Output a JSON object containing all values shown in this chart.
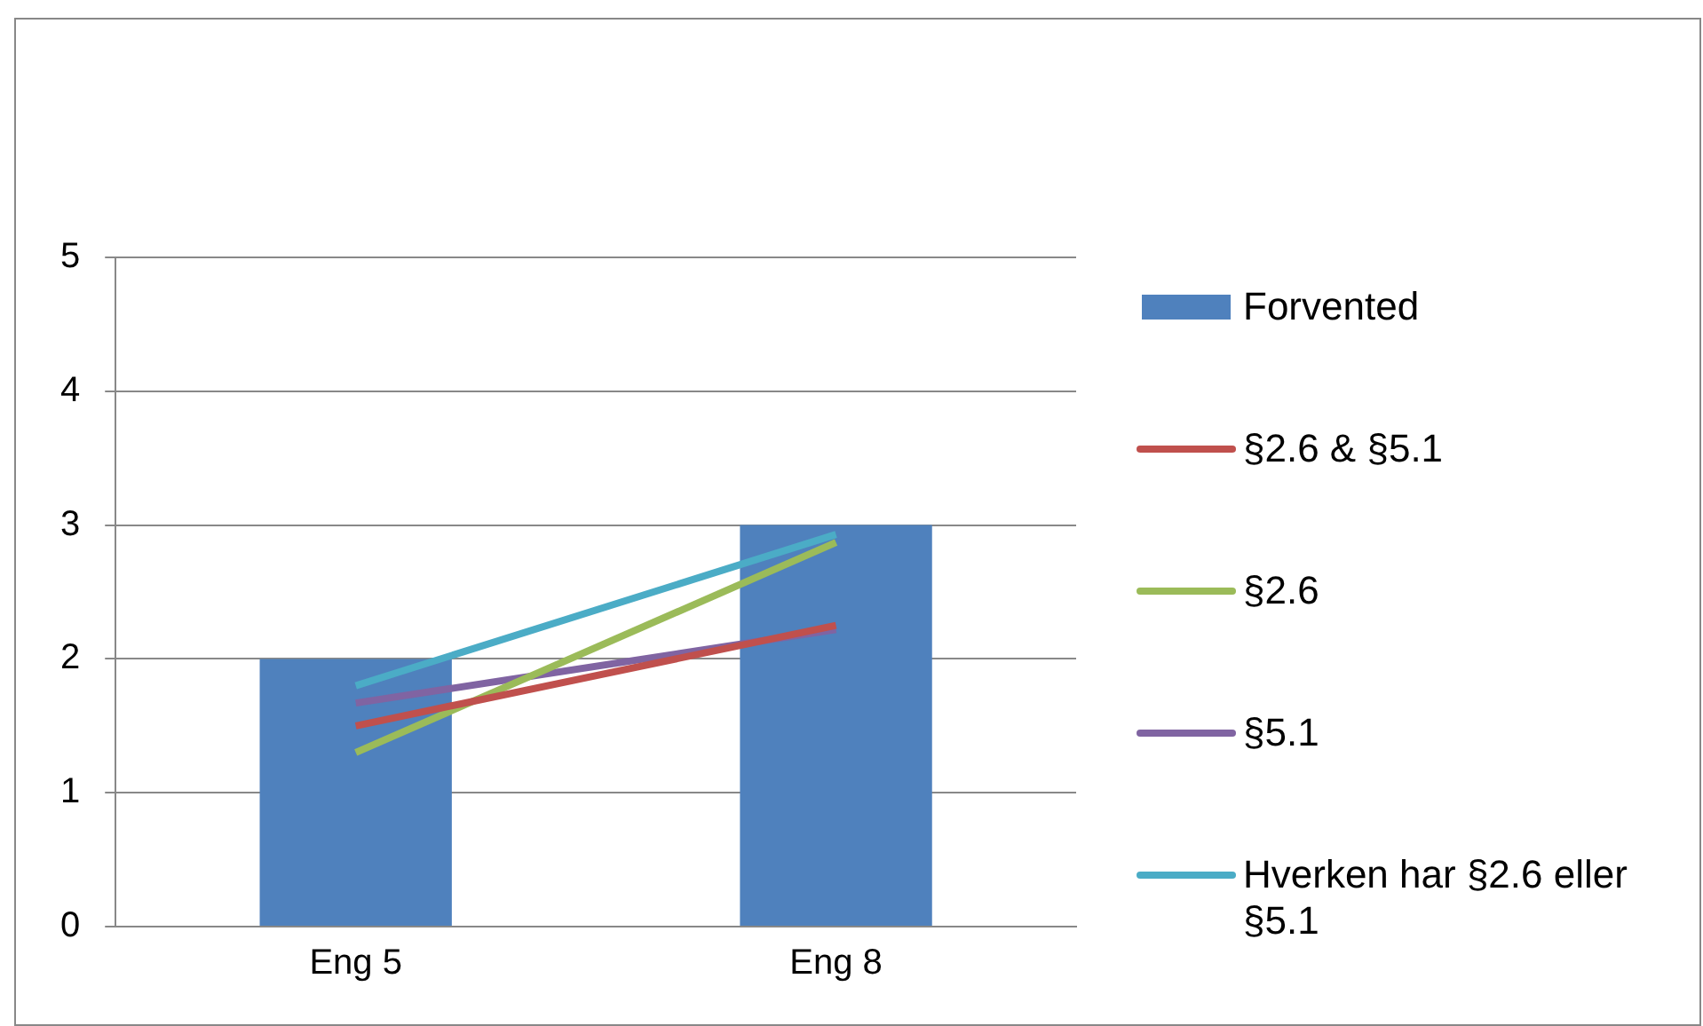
{
  "chart_data": {
    "type": "bar",
    "categories": [
      "Eng 5",
      "Eng 8"
    ],
    "series": [
      {
        "name": "Forvented",
        "color": "#4f81bd",
        "values": [
          2,
          3
        ]
      },
      {
        "name": "§2.6 & §5.1",
        "type": "line",
        "color": "#c0504d",
        "values": [
          1.5,
          2.25
        ]
      },
      {
        "name": "§2.6",
        "type": "line",
        "color": "#9bbb59",
        "values": [
          1.3,
          2.87
        ]
      },
      {
        "name": "§5.1",
        "type": "line",
        "color": "#8064a2",
        "values": [
          1.67,
          2.22
        ]
      },
      {
        "name": "Hverken har §2.6 eller §5.1",
        "type": "line",
        "color": "#4bacc6",
        "values": [
          1.8,
          2.93
        ]
      }
    ],
    "ylim": [
      0,
      5
    ],
    "yticks": [
      0,
      1,
      2,
      3,
      4,
      5
    ],
    "grid": "y",
    "legend": "right",
    "marker": "none"
  }
}
